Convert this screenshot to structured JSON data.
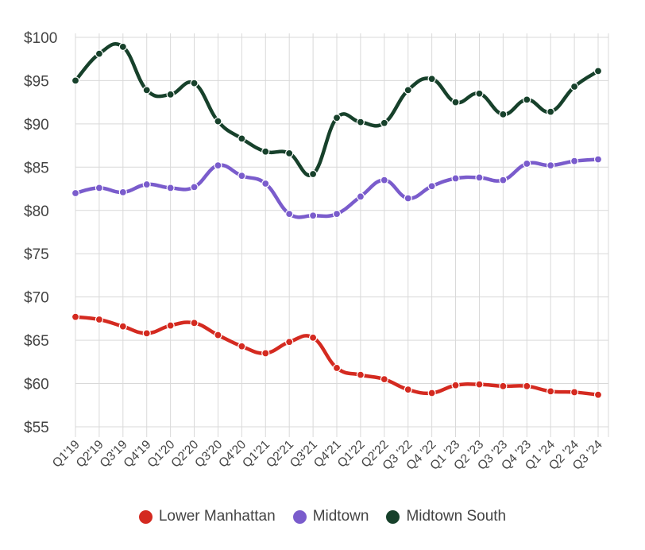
{
  "chart_data": {
    "type": "line",
    "title": "",
    "xlabel": "",
    "ylabel": "",
    "ylim": [
      54,
      100
    ],
    "yticks": [
      55,
      60,
      65,
      70,
      75,
      80,
      85,
      90,
      95,
      100
    ],
    "ytick_labels": [
      "$55",
      "$60",
      "$65",
      "$70",
      "$75",
      "$80",
      "$85",
      "$90",
      "$95",
      "$100"
    ],
    "categories": [
      "Q1'19",
      "Q2'19",
      "Q3'19",
      "Q4'19",
      "Q1'20",
      "Q2'20",
      "Q3'20",
      "Q4'20",
      "Q1'21",
      "Q2'21",
      "Q3'21",
      "Q4'21",
      "Q1'22",
      "Q2'22",
      "Q3 '22",
      "Q4 '22",
      "Q1 '23",
      "Q2 '23",
      "Q3 '23",
      "Q4 '23",
      "Q1 '24",
      "Q2 '24",
      "Q3 '24"
    ],
    "series": [
      {
        "name": "Lower Manhattan",
        "color": "#d42a20",
        "values": [
          67.7,
          67.4,
          66.6,
          65.8,
          66.7,
          67.0,
          65.6,
          64.3,
          63.5,
          64.8,
          65.3,
          61.8,
          61.0,
          60.5,
          59.3,
          58.9,
          59.8,
          59.9,
          59.7,
          59.7,
          59.1,
          59.0,
          58.7
        ]
      },
      {
        "name": "Midtown",
        "color": "#7a5ccc",
        "values": [
          82.0,
          82.6,
          82.1,
          83.0,
          82.6,
          82.7,
          85.2,
          84.0,
          83.1,
          79.6,
          79.4,
          79.6,
          81.6,
          83.5,
          81.4,
          82.8,
          83.7,
          83.8,
          83.5,
          85.4,
          85.2,
          85.7,
          85.9
        ]
      },
      {
        "name": "Midtown South",
        "color": "#17412b",
        "values": [
          95.0,
          98.1,
          98.9,
          93.9,
          93.4,
          94.7,
          90.3,
          88.3,
          86.8,
          86.6,
          84.2,
          90.7,
          90.2,
          90.1,
          93.9,
          95.2,
          92.5,
          93.5,
          91.1,
          92.8,
          91.4,
          94.3,
          96.1
        ]
      }
    ],
    "legend_position": "bottom-center",
    "grid": true
  }
}
